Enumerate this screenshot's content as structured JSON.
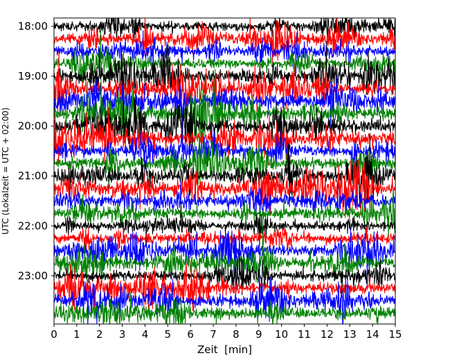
{
  "chart_data": {
    "type": "line",
    "title": "",
    "xlabel": "Zeit  [min]",
    "ylabel": "UTC (Lokalzeit = UTC + 02:00)",
    "xlim": [
      0,
      15
    ],
    "x_ticks": [
      0,
      1,
      2,
      3,
      4,
      5,
      6,
      7,
      8,
      9,
      10,
      11,
      12,
      13,
      14,
      15
    ],
    "y_ticks": [
      "18:00",
      "19:00",
      "20:00",
      "21:00",
      "22:00",
      "23:00"
    ],
    "ylim": [
      "17:50",
      "23:58"
    ],
    "y_axis_inverted": true,
    "grid": false,
    "legend": "none",
    "trace_interval_min": 15,
    "trace_color_cycle": [
      "#000000",
      "#ff0000",
      "#0000ff",
      "#008000"
    ],
    "traces": [
      {
        "start": "18:00",
        "color": "#000000",
        "activity": 0.35
      },
      {
        "start": "18:15",
        "color": "#ff0000",
        "activity": 0.6
      },
      {
        "start": "18:30",
        "color": "#0000ff",
        "activity": 0.4
      },
      {
        "start": "18:45",
        "color": "#008000",
        "activity": 0.45
      },
      {
        "start": "19:00",
        "color": "#000000",
        "activity": 0.7
      },
      {
        "start": "19:15",
        "color": "#ff0000",
        "activity": 0.75
      },
      {
        "start": "19:30",
        "color": "#0000ff",
        "activity": 0.8
      },
      {
        "start": "19:45",
        "color": "#008000",
        "activity": 0.7
      },
      {
        "start": "20:00",
        "color": "#000000",
        "activity": 0.8
      },
      {
        "start": "20:15",
        "color": "#ff0000",
        "activity": 0.75
      },
      {
        "start": "20:30",
        "color": "#0000ff",
        "activity": 0.55
      },
      {
        "start": "20:45",
        "color": "#008000",
        "activity": 0.55
      },
      {
        "start": "21:00",
        "color": "#000000",
        "activity": 0.65
      },
      {
        "start": "21:15",
        "color": "#ff0000",
        "activity": 0.85
      },
      {
        "start": "21:30",
        "color": "#0000ff",
        "activity": 0.55
      },
      {
        "start": "21:45",
        "color": "#008000",
        "activity": 0.5
      },
      {
        "start": "22:00",
        "color": "#000000",
        "activity": 0.3
      },
      {
        "start": "22:15",
        "color": "#ff0000",
        "activity": 0.45
      },
      {
        "start": "22:30",
        "color": "#0000ff",
        "activity": 0.6
      },
      {
        "start": "22:45",
        "color": "#008000",
        "activity": 0.5
      },
      {
        "start": "23:00",
        "color": "#000000",
        "activity": 0.45
      },
      {
        "start": "23:15",
        "color": "#ff0000",
        "activity": 0.55
      },
      {
        "start": "23:30",
        "color": "#0000ff",
        "activity": 0.65
      },
      {
        "start": "23:45",
        "color": "#008000",
        "activity": 0.5
      }
    ]
  }
}
